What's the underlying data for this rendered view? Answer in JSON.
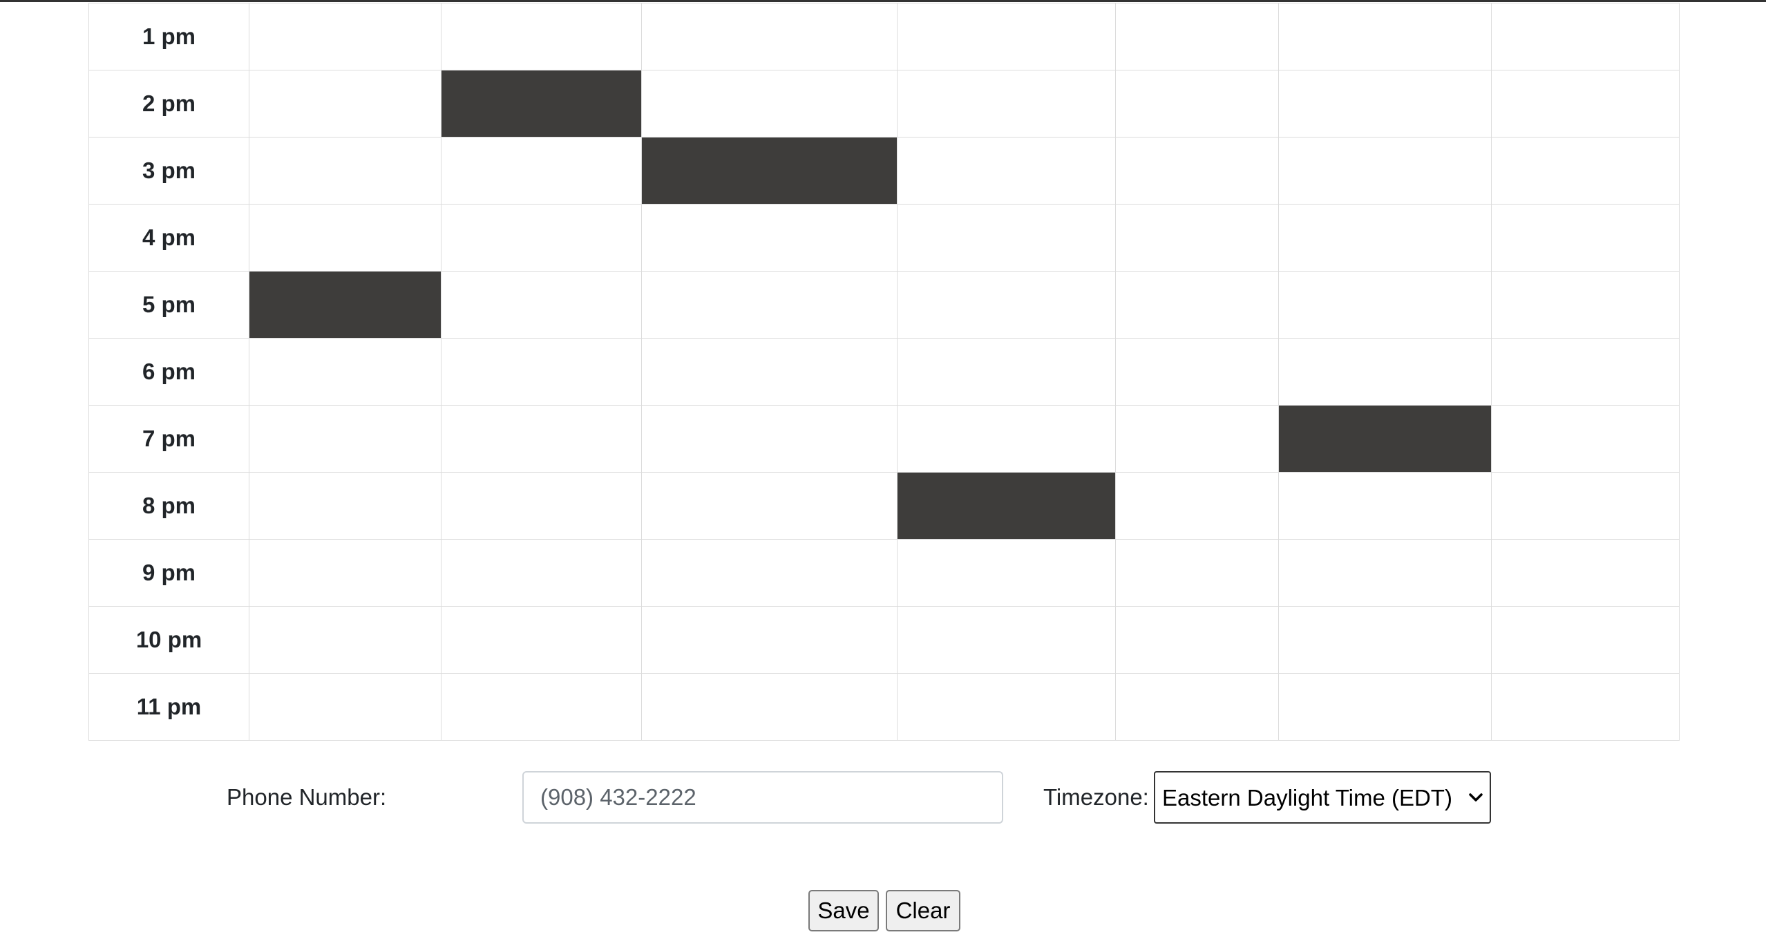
{
  "schedule": {
    "time_slots": [
      "1 pm",
      "2 pm",
      "3 pm",
      "4 pm",
      "5 pm",
      "6 pm",
      "7 pm",
      "8 pm",
      "9 pm",
      "10 pm",
      "11 pm"
    ],
    "day_column_count": 7,
    "selected_slots": [
      {
        "time": "2 pm",
        "day_index": 2
      },
      {
        "time": "3 pm",
        "day_index": 3
      },
      {
        "time": "5 pm",
        "day_index": 1
      },
      {
        "time": "7 pm",
        "day_index": 6
      },
      {
        "time": "8 pm",
        "day_index": 4
      }
    ],
    "colors": {
      "selected": "#3e3d3b",
      "grid_line": "#dcdcdc"
    }
  },
  "form": {
    "phone_label": "Phone Number:",
    "phone_placeholder": "(908) 432-2222",
    "timezone_label": "Timezone:",
    "timezone_selected": "Eastern Daylight Time (EDT)"
  },
  "actions": {
    "save_label": "Save",
    "clear_label": "Clear"
  },
  "icons": {
    "timezone_dropdown": "chevron-down-icon"
  }
}
